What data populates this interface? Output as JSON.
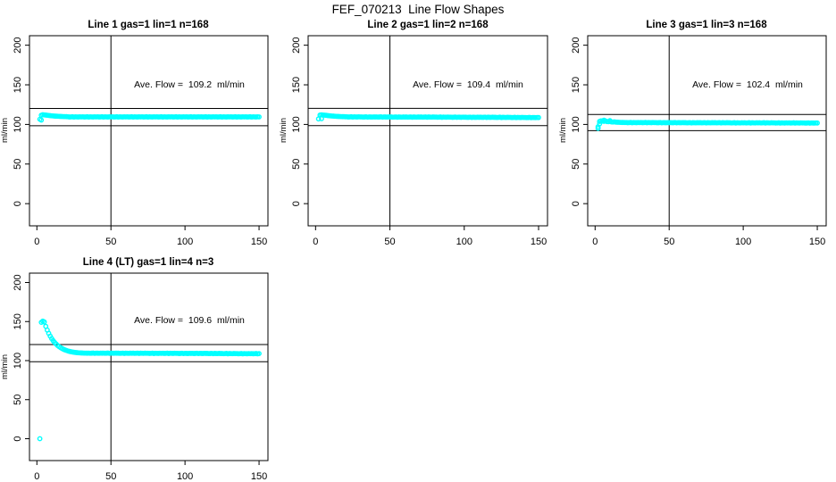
{
  "page_title": "FEF_070213  Line Flow Shapes",
  "colors": {
    "point": "#00FFFF",
    "axis": "#000000",
    "background": "#FFFFFF"
  },
  "axes": {
    "xticks": [
      0,
      50,
      100,
      150
    ],
    "yticks": [
      0,
      50,
      100,
      150,
      200
    ],
    "xlim": [
      -5,
      156
    ],
    "ylim": [
      -28,
      212
    ],
    "vline_x": 50
  },
  "chart_data": [
    {
      "type": "scatter",
      "title": "Line 1 gas=1 lin=1 n=168",
      "annotation": "Ave. Flow =  109.2  ml/min",
      "ave_flow_ml_min": 109.2,
      "n": 168,
      "ylabel": "ml/min",
      "ref_lines": [
        120.1,
        98.3
      ],
      "x_start": 2,
      "ys": [
        106.5,
        111.6,
        112.2,
        112.0,
        111.8,
        111.6,
        111.3,
        111.1,
        110.9,
        110.7,
        110.5,
        110.4,
        110.3,
        110.2,
        110.1,
        110.0,
        109.9,
        109.9,
        109.8,
        109.6,
        109.4,
        109.5,
        109.7,
        109.3,
        109.6,
        109.5,
        109.4,
        109.6,
        109.5,
        109.6,
        109.4,
        109.5,
        109.7,
        109.3,
        109.6,
        109.5,
        109.4,
        109.6,
        109.5,
        109.6,
        109.4,
        109.5,
        109.7,
        109.3,
        109.6,
        109.5,
        109.4,
        109.6,
        109.5,
        109.6,
        109.4,
        109.5,
        109.7,
        109.3,
        109.6,
        109.5,
        109.4,
        109.6,
        109.5,
        109.6,
        109.4,
        109.5,
        109.7,
        109.3,
        109.6,
        109.5,
        109.4,
        109.6,
        109.5,
        109.6,
        109.4,
        109.5,
        109.7,
        109.3,
        109.6,
        109.5,
        109.4,
        109.6,
        109.5,
        109.6,
        109.4,
        109.5,
        109.7,
        109.3,
        109.6,
        109.5,
        109.4,
        109.6,
        109.5,
        109.6,
        109.4,
        109.5,
        109.7,
        109.3,
        109.6,
        109.5,
        109.4,
        109.6,
        109.5,
        109.6,
        109.4,
        109.5,
        109.7,
        109.3,
        109.6,
        109.5,
        109.4,
        109.6,
        109.5,
        109.6,
        109.4,
        109.5,
        109.7,
        109.3,
        109.6,
        109.5,
        109.4,
        109.6,
        109.5,
        109.6,
        109.4,
        109.5,
        109.7,
        109.3,
        109.6,
        109.5,
        109.4,
        109.6,
        109.5,
        109.6,
        109.4,
        109.5,
        109.7,
        109.3,
        109.6,
        109.5,
        109.4,
        109.6,
        109.5,
        109.6,
        109.4,
        109.5,
        109.7,
        109.3,
        109.6,
        109.5,
        109.4,
        109.6,
        109.5
      ],
      "extra_points": [
        [
          3,
          105.5
        ]
      ]
    },
    {
      "type": "scatter",
      "title": "Line 2 gas=1 lin=2 n=168",
      "annotation": "Ave. Flow =  109.4  ml/min",
      "ave_flow_ml_min": 109.4,
      "n": 168,
      "ylabel": "ml/min",
      "ref_lines": [
        120.3,
        98.5
      ],
      "x_start": 2,
      "ys": [
        107.0,
        111.8,
        112.1,
        111.9,
        111.7,
        111.5,
        111.2,
        111.0,
        110.8,
        110.6,
        110.5,
        110.3,
        110.2,
        110.1,
        110.0,
        109.9,
        109.8,
        109.8,
        109.7,
        109.6,
        109.4,
        109.5,
        109.7,
        109.3,
        109.6,
        109.5,
        109.4,
        109.6,
        109.5,
        109.5,
        109.3,
        109.4,
        109.6,
        109.2,
        109.5,
        109.4,
        109.3,
        109.5,
        109.4,
        109.5,
        109.3,
        109.4,
        109.6,
        109.2,
        109.5,
        109.4,
        109.3,
        109.5,
        109.4,
        109.4,
        109.2,
        109.3,
        109.5,
        109.1,
        109.4,
        109.3,
        109.2,
        109.4,
        109.3,
        109.4,
        109.2,
        109.3,
        109.5,
        109.1,
        109.4,
        109.3,
        109.2,
        109.4,
        109.3,
        109.4,
        109.2,
        109.3,
        109.5,
        109.1,
        109.4,
        109.3,
        109.2,
        109.4,
        109.3,
        109.3,
        109.1,
        109.2,
        109.4,
        109.0,
        109.3,
        109.2,
        109.1,
        109.3,
        109.2,
        109.2,
        109.0,
        109.1,
        109.3,
        108.9,
        109.2,
        109.1,
        109.0,
        109.2,
        109.1,
        109.1,
        108.9,
        109.0,
        109.2,
        108.8,
        109.1,
        109.0,
        108.9,
        109.1,
        109.0,
        109.1,
        108.9,
        109.0,
        109.2,
        108.8,
        109.1,
        109.0,
        108.9,
        109.1,
        109.0,
        109.0,
        108.8,
        108.9,
        109.1,
        108.7,
        109.0,
        108.9,
        108.8,
        109.0,
        108.9,
        108.9,
        108.7,
        108.8,
        109.0,
        108.6,
        108.9,
        108.8,
        108.7,
        108.9,
        108.8,
        108.8,
        108.6,
        108.7,
        108.9,
        108.5,
        108.8,
        108.7,
        108.6,
        108.8,
        108.7
      ],
      "extra_points": [
        [
          4,
          107.2
        ]
      ]
    },
    {
      "type": "scatter",
      "title": "Line 3 gas=1 lin=3 n=168",
      "annotation": "Ave. Flow =  102.4  ml/min",
      "ave_flow_ml_min": 102.4,
      "n": 168,
      "ylabel": "ml/min",
      "ref_lines": [
        112.6,
        92.2
      ],
      "x_start": 2,
      "ys": [
        95.0,
        103.8,
        104.5,
        104.2,
        103.9,
        104.3,
        103.6,
        103.4,
        103.8,
        103.2,
        103.0,
        103.3,
        102.9,
        102.8,
        102.7,
        102.6,
        102.5,
        102.5,
        102.4,
        102.4,
        102.2,
        102.3,
        102.5,
        102.1,
        102.4,
        102.3,
        102.2,
        102.4,
        102.3,
        102.4,
        102.2,
        102.3,
        102.5,
        102.1,
        102.4,
        102.3,
        102.2,
        102.4,
        102.3,
        102.3,
        102.1,
        102.2,
        102.4,
        102.0,
        102.3,
        102.2,
        102.1,
        102.3,
        102.2,
        102.3,
        102.1,
        102.2,
        102.4,
        102.0,
        102.3,
        102.2,
        102.1,
        102.3,
        102.2,
        102.2,
        102.0,
        102.1,
        102.3,
        101.9,
        102.2,
        102.1,
        102.0,
        102.2,
        102.1,
        102.2,
        102.0,
        102.1,
        102.3,
        101.9,
        102.2,
        102.1,
        102.0,
        102.2,
        102.1,
        102.2,
        102.0,
        102.1,
        102.3,
        101.9,
        102.2,
        102.1,
        102.0,
        102.2,
        102.1,
        102.1,
        101.9,
        102.0,
        102.2,
        101.8,
        102.1,
        102.0,
        101.9,
        102.1,
        102.0,
        102.1,
        101.9,
        102.0,
        102.2,
        101.8,
        102.1,
        102.0,
        101.9,
        102.1,
        102.0,
        102.1,
        101.9,
        102.0,
        102.2,
        101.8,
        102.1,
        102.0,
        101.9,
        102.1,
        102.0,
        102.0,
        101.8,
        101.9,
        102.1,
        101.7,
        102.0,
        101.9,
        101.8,
        102.0,
        101.9,
        102.0,
        101.8,
        101.9,
        102.1,
        101.7,
        102.0,
        101.9,
        101.8,
        102.0,
        101.9,
        101.9,
        101.7,
        101.8,
        102.0,
        101.6,
        101.9,
        101.8,
        101.7,
        101.9,
        101.8
      ],
      "extra_points": [
        [
          2,
          97.0
        ],
        [
          3,
          100.8
        ],
        [
          6,
          105.4
        ],
        [
          10,
          104.8
        ]
      ]
    },
    {
      "type": "scatter",
      "title": "Line 4 (LT) gas=1 lin=4 n=3",
      "annotation": "Ave. Flow =  109.6  ml/min",
      "ave_flow_ml_min": 109.6,
      "n": 3,
      "ylabel": "ml/min",
      "ref_lines": [
        120.6,
        98.6
      ],
      "x_start": 2,
      "ys": [
        0.0,
        149.0,
        150.5,
        149.5,
        143.9,
        139.1,
        134.9,
        131.3,
        128.2,
        125.5,
        123.2,
        121.2,
        119.4,
        117.9,
        116.6,
        115.5,
        114.5,
        113.7,
        113.0,
        112.3,
        111.8,
        111.4,
        111.0,
        110.7,
        110.4,
        110.2,
        110.0,
        109.9,
        109.8,
        109.7,
        109.6,
        109.6,
        109.5,
        109.6,
        109.4,
        109.5,
        109.7,
        109.3,
        109.6,
        109.5,
        109.4,
        109.6,
        109.5,
        109.6,
        109.4,
        109.5,
        109.7,
        109.3,
        109.6,
        109.5,
        109.4,
        109.6,
        109.5,
        109.5,
        109.3,
        109.4,
        109.6,
        109.2,
        109.5,
        109.4,
        109.3,
        109.5,
        109.4,
        109.5,
        109.3,
        109.4,
        109.6,
        109.2,
        109.5,
        109.4,
        109.3,
        109.5,
        109.4,
        109.4,
        109.2,
        109.3,
        109.5,
        109.1,
        109.4,
        109.3,
        109.2,
        109.4,
        109.3,
        109.4,
        109.2,
        109.3,
        109.5,
        109.1,
        109.4,
        109.3,
        109.2,
        109.4,
        109.3,
        109.3,
        109.1,
        109.2,
        109.4,
        109.0,
        109.3,
        109.2,
        109.1,
        109.3,
        109.2,
        109.3,
        109.1,
        109.2,
        109.4,
        109.0,
        109.3,
        109.2,
        109.1,
        109.3,
        109.2,
        109.2,
        109.0,
        109.1,
        109.3,
        108.9,
        109.2,
        109.1,
        109.0,
        109.2,
        109.1,
        109.1,
        108.9,
        109.0,
        109.2,
        108.8,
        109.1,
        109.0,
        108.9,
        109.1,
        109.0,
        109.0,
        108.8,
        108.9,
        109.1,
        108.7,
        109.0,
        108.9,
        108.8,
        109.0,
        108.9,
        109.0,
        108.8,
        108.9,
        109.1,
        108.7,
        109.0
      ],
      "extra_points": []
    }
  ]
}
